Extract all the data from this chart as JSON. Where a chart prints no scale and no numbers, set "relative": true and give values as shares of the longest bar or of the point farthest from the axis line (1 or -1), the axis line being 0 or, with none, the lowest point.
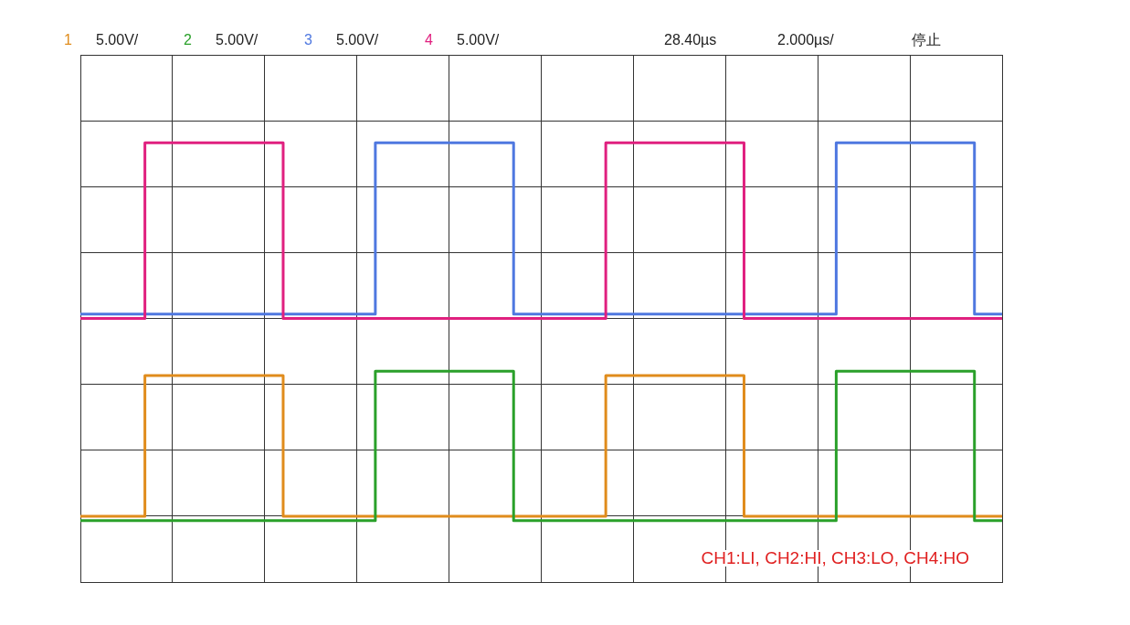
{
  "chart_data": {
    "type": "step",
    "relative": true,
    "grid": true,
    "legend": "top",
    "marker": "none",
    "line_style": "solid",
    "categories": [
      null,
      null,
      null,
      null,
      null,
      null,
      null,
      null,
      null,
      null,
      null,
      null,
      null,
      null,
      null,
      null,
      null,
      null,
      null,
      null,
      null,
      null,
      null,
      null,
      null,
      null,
      null,
      null,
      null,
      null,
      null,
      null,
      null,
      null,
      null,
      null,
      null,
      null,
      null,
      null,
      null,
      null,
      null,
      null,
      null,
      null,
      null,
      null,
      null,
      null,
      null,
      null,
      null,
      null,
      null,
      null,
      null,
      null,
      null,
      null,
      null,
      null,
      null,
      null,
      null,
      null,
      null,
      null,
      null,
      null,
      null,
      null,
      null,
      null,
      null,
      null,
      null,
      null,
      null,
      null,
      null,
      null,
      null,
      null,
      null,
      null,
      null,
      null,
      null,
      null,
      null,
      null,
      null,
      null,
      null,
      null,
      null,
      null,
      null,
      null,
      null
    ],
    "series": [
      {
        "name": "1",
        "color": "#e08c1c",
        "values": [
          0.15,
          0.15,
          0.15,
          0.15,
          0.15,
          0.15,
          0.15,
          0.15,
          0.47,
          0.47,
          0.47,
          0.47,
          0.47,
          0.47,
          0.47,
          0.47,
          0.47,
          0.47,
          0.47,
          0.47,
          0.47,
          0.47,
          0.47,
          0.15,
          0.15,
          0.15,
          0.15,
          0.15,
          0.15,
          0.15,
          0.15,
          0.15,
          0.15,
          0.15,
          0.15,
          0.15,
          0.15,
          0.15,
          0.15,
          0.15,
          0.15,
          0.15,
          0.15,
          0.15,
          0.15,
          0.15,
          0.15,
          0.15,
          0.15,
          0.15,
          0.15,
          0.15,
          0.15,
          0.15,
          0.15,
          0.15,
          0.15,
          0.15,
          0.47,
          0.47,
          0.47,
          0.47,
          0.47,
          0.47,
          0.47,
          0.47,
          0.47,
          0.47,
          0.47,
          0.47,
          0.47,
          0.47,
          0.47,
          0.15,
          0.15,
          0.15,
          0.15,
          0.15,
          0.15,
          0.15,
          0.15,
          0.15,
          0.15,
          0.15,
          0.15,
          0.15,
          0.15,
          0.15,
          0.15,
          0.15,
          0.15,
          0.15,
          0.15,
          0.15,
          0.15,
          0.15,
          0.15,
          0.15,
          0.15,
          0.15,
          0.15
        ]
      },
      {
        "name": "2",
        "color": "#2aa02a",
        "values": [
          0.14,
          0.14,
          0.14,
          0.14,
          0.14,
          0.14,
          0.14,
          0.14,
          0.14,
          0.14,
          0.14,
          0.14,
          0.14,
          0.14,
          0.14,
          0.14,
          0.14,
          0.14,
          0.14,
          0.14,
          0.14,
          0.14,
          0.14,
          0.14,
          0.14,
          0.14,
          0.14,
          0.14,
          0.14,
          0.14,
          0.14,
          0.14,
          0.14,
          0.48,
          0.48,
          0.48,
          0.48,
          0.48,
          0.48,
          0.48,
          0.48,
          0.48,
          0.48,
          0.48,
          0.48,
          0.48,
          0.48,
          0.48,
          0.14,
          0.14,
          0.14,
          0.14,
          0.14,
          0.14,
          0.14,
          0.14,
          0.14,
          0.14,
          0.14,
          0.14,
          0.14,
          0.14,
          0.14,
          0.14,
          0.14,
          0.14,
          0.14,
          0.14,
          0.14,
          0.14,
          0.14,
          0.14,
          0.14,
          0.14,
          0.14,
          0.14,
          0.14,
          0.14,
          0.14,
          0.14,
          0.14,
          0.14,
          0.14,
          0.48,
          0.48,
          0.48,
          0.48,
          0.48,
          0.48,
          0.48,
          0.48,
          0.48,
          0.48,
          0.48,
          0.48,
          0.48,
          0.48,
          0.48,
          0.14,
          0.14,
          0.14
        ]
      },
      {
        "name": "3",
        "color": "#4f78e0",
        "values": [
          0.61,
          0.61,
          0.61,
          0.61,
          0.61,
          0.61,
          0.61,
          0.61,
          0.61,
          0.61,
          0.61,
          0.61,
          0.61,
          0.61,
          0.61,
          0.61,
          0.61,
          0.61,
          0.61,
          0.61,
          0.61,
          0.61,
          0.61,
          0.61,
          0.61,
          0.61,
          0.61,
          0.61,
          0.61,
          0.61,
          0.61,
          0.61,
          0.61,
          1,
          1,
          1,
          1,
          1,
          1,
          1,
          1,
          1,
          1,
          1,
          1,
          1,
          1,
          1,
          0.61,
          0.61,
          0.61,
          0.61,
          0.61,
          0.61,
          0.61,
          0.61,
          0.61,
          0.61,
          0.61,
          0.61,
          0.61,
          0.61,
          0.61,
          0.61,
          0.61,
          0.61,
          0.61,
          0.61,
          0.61,
          0.61,
          0.61,
          0.61,
          0.61,
          0.61,
          0.61,
          0.61,
          0.61,
          0.61,
          0.61,
          0.61,
          0.61,
          0.61,
          0.61,
          1,
          1,
          1,
          1,
          1,
          1,
          1,
          1,
          1,
          1,
          1,
          1,
          1,
          1,
          1,
          0.61,
          0.61,
          0.61
        ]
      },
      {
        "name": "4",
        "color": "#e0207f",
        "values": [
          0.6,
          0.6,
          0.6,
          0.6,
          0.6,
          0.6,
          0.6,
          0.6,
          1,
          1,
          1,
          1,
          1,
          1,
          1,
          1,
          1,
          1,
          1,
          1,
          1,
          1,
          1,
          0.6,
          0.6,
          0.6,
          0.6,
          0.6,
          0.6,
          0.6,
          0.6,
          0.6,
          0.6,
          0.6,
          0.6,
          0.6,
          0.6,
          0.6,
          0.6,
          0.6,
          0.6,
          0.6,
          0.6,
          0.6,
          0.6,
          0.6,
          0.6,
          0.6,
          0.6,
          0.6,
          0.6,
          0.6,
          0.6,
          0.6,
          0.6,
          0.6,
          0.6,
          0.6,
          1,
          1,
          1,
          1,
          1,
          1,
          1,
          1,
          1,
          1,
          1,
          1,
          1,
          1,
          1,
          0.6,
          0.6,
          0.6,
          0.6,
          0.6,
          0.6,
          0.6,
          0.6,
          0.6,
          0.6,
          0.6,
          0.6,
          0.6,
          0.6,
          0.6,
          0.6,
          0.6,
          0.6,
          0.6,
          0.6,
          0.6,
          0.6,
          0.6,
          0.6,
          0.6,
          0.6,
          0.6,
          0.6
        ]
      }
    ],
    "annotations": [
      "5.00V/",
      "5.00V/",
      "5.00V/",
      "5.00V/",
      "28.40µs",
      "2.000µs/",
      "停止",
      "CH1:LI, CH2:HI, CH3:LO, CH4:HO"
    ]
  }
}
